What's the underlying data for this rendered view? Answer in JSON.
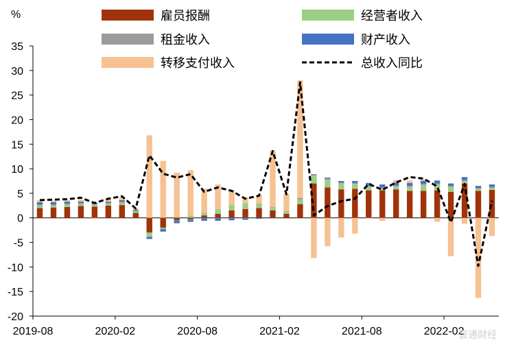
{
  "chart_data": {
    "type": "bar",
    "stacked": true,
    "ylabel": "%",
    "ylim": [
      -20,
      35
    ],
    "yticks": [
      -20,
      -15,
      -10,
      -5,
      0,
      5,
      10,
      15,
      20,
      25,
      30,
      35
    ],
    "x_tick_labels": [
      "2019-08",
      "2020-02",
      "2020-08",
      "2021-02",
      "2021-08",
      "2022-02"
    ],
    "x_tick_positions": [
      0,
      6,
      12,
      18,
      24,
      30
    ],
    "categories": [
      "2019-08",
      "2019-09",
      "2019-10",
      "2019-11",
      "2019-12",
      "2020-01",
      "2020-02",
      "2020-03",
      "2020-04",
      "2020-05",
      "2020-06",
      "2020-07",
      "2020-08",
      "2020-09",
      "2020-10",
      "2020-11",
      "2020-12",
      "2021-01",
      "2021-02",
      "2021-03",
      "2021-04",
      "2021-05",
      "2021-06",
      "2021-07",
      "2021-08",
      "2021-09",
      "2021-10",
      "2021-11",
      "2021-12",
      "2022-01",
      "2022-02",
      "2022-03",
      "2022-04",
      "2022-05"
    ],
    "series": [
      {
        "name": "雇员报酬",
        "color": "#a0330a",
        "type": "bar",
        "values": [
          2.0,
          2.1,
          2.2,
          2.4,
          2.3,
          2.5,
          2.6,
          1.0,
          -3.0,
          -2.0,
          -0.5,
          -0.3,
          0.5,
          0.8,
          1.5,
          1.8,
          2.0,
          1.5,
          0.8,
          2.8,
          7.0,
          6.2,
          5.8,
          5.9,
          5.6,
          5.6,
          5.8,
          5.5,
          5.5,
          5.6,
          5.3,
          7.0,
          5.5,
          5.7
        ]
      },
      {
        "name": "经营者收入",
        "color": "#9bcf83",
        "type": "bar",
        "values": [
          0.5,
          0.4,
          0.5,
          0.4,
          0.4,
          0.4,
          0.5,
          0.3,
          -0.8,
          -0.2,
          0.2,
          0.5,
          0.6,
          1.0,
          1.2,
          1.2,
          0.8,
          0.6,
          0.5,
          1.0,
          1.6,
          1.6,
          1.2,
          1.0,
          0.8,
          0.4,
          0.6,
          0.8,
          1.2,
          1.2,
          1.0,
          0.5,
          0.4,
          0.4
        ]
      },
      {
        "name": "租金收入",
        "color": "#9b9b9b",
        "type": "bar",
        "values": [
          0.2,
          0.2,
          0.2,
          0.2,
          0.2,
          0.2,
          0.2,
          0.1,
          -0.1,
          -0.1,
          -0.1,
          -0.1,
          -0.1,
          -0.1,
          -0.1,
          -0.1,
          0.1,
          0.1,
          0.1,
          0.1,
          0.2,
          0.2,
          0.2,
          0.2,
          0.2,
          0.2,
          0.2,
          0.2,
          0.2,
          0.2,
          0.2,
          0.2,
          0.2,
          0.2
        ]
      },
      {
        "name": "财产收入",
        "color": "#4472c4",
        "type": "bar",
        "values": [
          0.5,
          0.5,
          0.4,
          0.3,
          0.2,
          0.2,
          0.3,
          0.2,
          -0.4,
          -0.5,
          -0.5,
          -0.4,
          -0.5,
          -0.5,
          -0.4,
          -0.3,
          -0.2,
          -0.1,
          0.0,
          0.1,
          0.1,
          0.2,
          0.3,
          0.4,
          0.5,
          0.6,
          0.6,
          0.6,
          0.6,
          0.6,
          0.5,
          0.6,
          0.4,
          0.5
        ]
      },
      {
        "name": "转移支付收入",
        "color": "#f6c193",
        "type": "bar",
        "values": [
          0.4,
          0.3,
          0.3,
          0.4,
          -0.2,
          0.5,
          0.6,
          0.3,
          16.8,
          11.6,
          9.0,
          9.2,
          4.8,
          5.0,
          3.0,
          1.2,
          1.8,
          11.5,
          3.5,
          24.0,
          -8.2,
          -5.8,
          -4.0,
          -3.2,
          -0.1,
          -0.6,
          0.5,
          0.5,
          0.3,
          -0.8,
          -7.8,
          -1.2,
          -16.3,
          -3.7
        ]
      },
      {
        "name": "总收入同比",
        "color": "#000000",
        "type": "line",
        "dashed": true,
        "values": [
          3.6,
          3.7,
          3.8,
          4.1,
          3.0,
          3.9,
          4.4,
          1.9,
          12.7,
          9.0,
          8.2,
          8.9,
          5.3,
          6.2,
          5.5,
          3.9,
          4.5,
          13.6,
          4.8,
          27.6,
          0.5,
          2.4,
          3.4,
          3.9,
          6.9,
          5.7,
          7.2,
          8.3,
          8.0,
          6.4,
          -0.9,
          6.9,
          -9.8,
          3.5
        ]
      }
    ],
    "legend_placement": "top"
  },
  "watermark": "智通财经"
}
